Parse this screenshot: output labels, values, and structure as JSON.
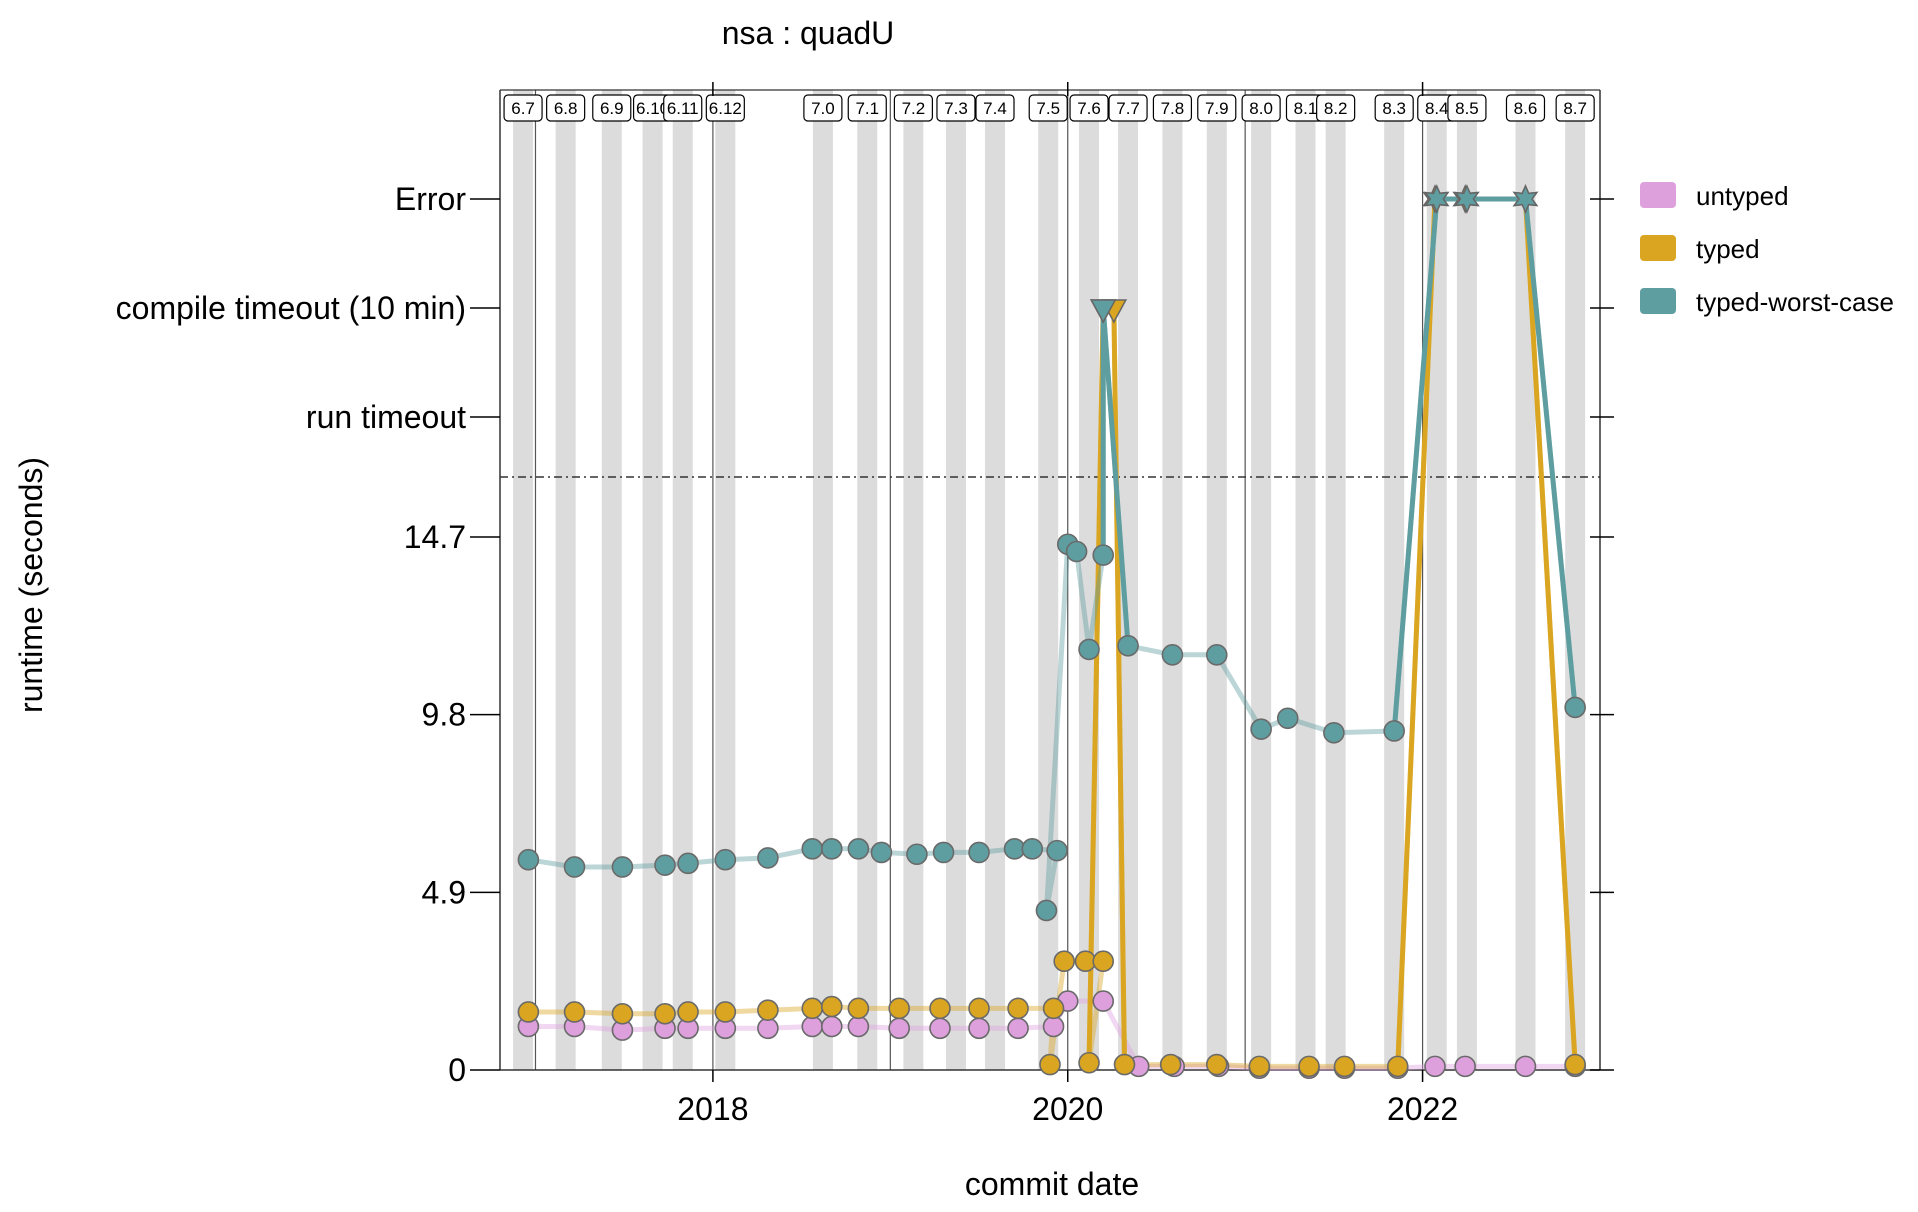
{
  "chart_data": {
    "type": "line",
    "title": "nsa : quadU",
    "xlabel": "commit date",
    "ylabel": "runtime (seconds)",
    "x_range": [
      2016.8,
      2023.0
    ],
    "x_ticks": [
      2018,
      2020,
      2022
    ],
    "y_ticks": [
      {
        "value": 0,
        "label": "0"
      },
      {
        "value": 4.9,
        "label": "4.9"
      },
      {
        "value": 9.8,
        "label": "9.8"
      },
      {
        "value": 14.7,
        "label": "14.7"
      },
      {
        "value": "run_timeout",
        "label": "run timeout"
      },
      {
        "value": "compile_timeout",
        "label": "compile timeout (10 min)"
      },
      {
        "value": "error",
        "label": "Error"
      }
    ],
    "grid": false,
    "legend": {
      "position": "right",
      "entries": [
        {
          "name": "untyped",
          "color": "#DDA0DD"
        },
        {
          "name": "typed",
          "color": "#DAA520"
        },
        {
          "name": "typed-worst-case",
          "color": "#5F9EA0"
        }
      ]
    },
    "releases": [
      {
        "label": "6.7",
        "x": 2016.93
      },
      {
        "label": "6.8",
        "x": 2017.17
      },
      {
        "label": "6.9",
        "x": 2017.43
      },
      {
        "label": "6.10",
        "x": 2017.66
      },
      {
        "label": "6.11",
        "x": 2017.83
      },
      {
        "label": "6.12",
        "x": 2018.07
      },
      {
        "label": "7.0",
        "x": 2018.62
      },
      {
        "label": "7.1",
        "x": 2018.87
      },
      {
        "label": "7.2",
        "x": 2019.13
      },
      {
        "label": "7.3",
        "x": 2019.37
      },
      {
        "label": "7.4",
        "x": 2019.59
      },
      {
        "label": "7.5",
        "x": 2019.89
      },
      {
        "label": "7.6",
        "x": 2020.12
      },
      {
        "label": "7.7",
        "x": 2020.34
      },
      {
        "label": "7.8",
        "x": 2020.59
      },
      {
        "label": "7.9",
        "x": 2020.84
      },
      {
        "label": "8.0",
        "x": 2021.09
      },
      {
        "label": "8.1",
        "x": 2021.34
      },
      {
        "label": "8.2",
        "x": 2021.51
      },
      {
        "label": "8.3",
        "x": 2021.84
      },
      {
        "label": "8.4",
        "x": 2022.08
      },
      {
        "label": "8.5",
        "x": 2022.25
      },
      {
        "label": "8.6",
        "x": 2022.58
      },
      {
        "label": "8.7",
        "x": 2022.86
      }
    ],
    "series": [
      {
        "name": "untyped",
        "points": [
          [
            2016.96,
            1.2
          ],
          [
            2017.22,
            1.2
          ],
          [
            2017.49,
            1.1
          ],
          [
            2017.73,
            1.15
          ],
          [
            2017.86,
            1.15
          ],
          [
            2018.07,
            1.15
          ],
          [
            2018.31,
            1.15
          ],
          [
            2018.56,
            1.2
          ],
          [
            2018.67,
            1.2
          ],
          [
            2018.82,
            1.2
          ],
          [
            2019.05,
            1.15
          ],
          [
            2019.28,
            1.15
          ],
          [
            2019.5,
            1.15
          ],
          [
            2019.72,
            1.15
          ],
          [
            2019.92,
            1.2
          ],
          [
            2020.0,
            1.9
          ],
          [
            2020.2,
            1.9
          ],
          [
            2020.4,
            0.1
          ],
          [
            2020.6,
            0.1
          ],
          [
            2020.85,
            0.1
          ],
          [
            2021.08,
            0.05
          ],
          [
            2021.36,
            0.05
          ],
          [
            2021.56,
            0.05
          ],
          [
            2021.86,
            0.05
          ],
          [
            2022.07,
            0.1
          ],
          [
            2022.24,
            0.1
          ],
          [
            2022.58,
            0.1
          ],
          [
            2022.86,
            0.1
          ]
        ]
      },
      {
        "name": "typed",
        "points": [
          [
            2016.96,
            1.6
          ],
          [
            2017.22,
            1.6
          ],
          [
            2017.49,
            1.55
          ],
          [
            2017.73,
            1.55
          ],
          [
            2017.86,
            1.6
          ],
          [
            2018.07,
            1.6
          ],
          [
            2018.31,
            1.65
          ],
          [
            2018.56,
            1.7
          ],
          [
            2018.67,
            1.75
          ],
          [
            2018.82,
            1.7
          ],
          [
            2019.05,
            1.7
          ],
          [
            2019.28,
            1.7
          ],
          [
            2019.5,
            1.7
          ],
          [
            2019.72,
            1.7
          ],
          [
            2019.92,
            1.7
          ],
          [
            2019.9,
            0.15
          ],
          [
            2019.98,
            3.0
          ],
          [
            2020.1,
            3.0
          ],
          [
            2020.2,
            3.0
          ],
          [
            2020.12,
            0.2
          ],
          [
            2020.2,
            "compile_timeout"
          ],
          [
            2020.26,
            "compile_timeout"
          ],
          [
            2020.32,
            0.15
          ],
          [
            2020.58,
            0.15
          ],
          [
            2020.84,
            0.15
          ],
          [
            2021.08,
            0.1
          ],
          [
            2021.36,
            0.1
          ],
          [
            2021.56,
            0.1
          ],
          [
            2021.86,
            0.1
          ],
          [
            2022.07,
            "error"
          ],
          [
            2022.24,
            "error"
          ],
          [
            2022.58,
            "error"
          ],
          [
            2022.86,
            0.15
          ]
        ]
      },
      {
        "name": "typed-worst-case",
        "points": [
          [
            2016.96,
            5.8
          ],
          [
            2017.22,
            5.6
          ],
          [
            2017.49,
            5.6
          ],
          [
            2017.73,
            5.65
          ],
          [
            2017.86,
            5.7
          ],
          [
            2018.07,
            5.8
          ],
          [
            2018.31,
            5.85
          ],
          [
            2018.56,
            6.1
          ],
          [
            2018.67,
            6.1
          ],
          [
            2018.82,
            6.1
          ],
          [
            2018.95,
            6.0
          ],
          [
            2019.15,
            5.95
          ],
          [
            2019.3,
            6.0
          ],
          [
            2019.5,
            6.0
          ],
          [
            2019.7,
            6.1
          ],
          [
            2019.8,
            6.1
          ],
          [
            2019.94,
            6.05
          ],
          [
            2019.88,
            4.4
          ],
          [
            2020.0,
            14.5
          ],
          [
            2020.05,
            14.3
          ],
          [
            2020.12,
            11.6
          ],
          [
            2020.2,
            14.2
          ],
          [
            2020.2,
            "compile_timeout"
          ],
          [
            2020.34,
            11.7
          ],
          [
            2020.59,
            11.45
          ],
          [
            2020.84,
            11.45
          ],
          [
            2021.09,
            9.4
          ],
          [
            2021.24,
            9.7
          ],
          [
            2021.5,
            9.3
          ],
          [
            2021.84,
            9.35
          ],
          [
            2022.08,
            "error"
          ],
          [
            2022.25,
            "error"
          ],
          [
            2022.58,
            "error"
          ],
          [
            2022.86,
            10.0
          ]
        ]
      }
    ]
  }
}
